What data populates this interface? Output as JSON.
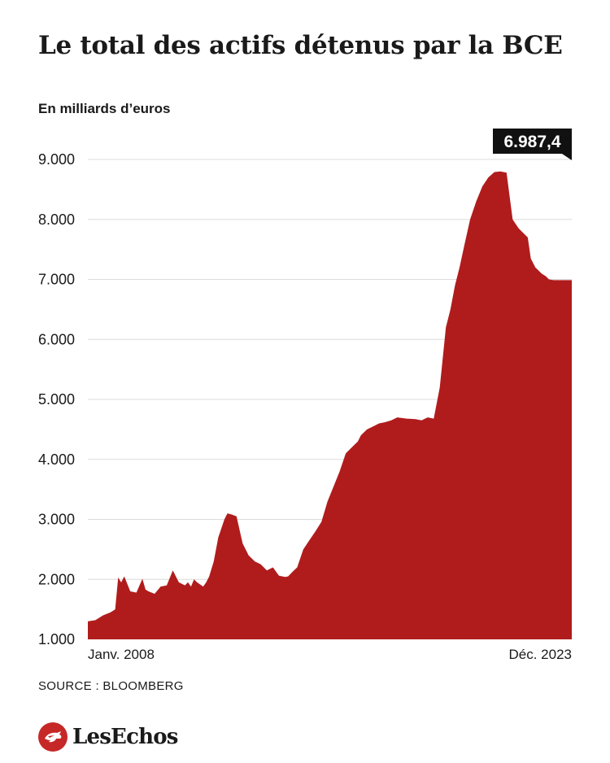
{
  "header": {
    "title": "Le total des actifs détenus par la BCE",
    "subtitle": "En milliards d’euros"
  },
  "source": "SOURCE : BLOOMBERG",
  "brand": {
    "name": "LesEchos",
    "color": "#c62828"
  },
  "chart_data": {
    "type": "area",
    "title": "Le total des actifs détenus par la BCE",
    "ylabel": "En milliards d’euros",
    "ylim": [
      1000,
      9000
    ],
    "yticks": [
      1000,
      2000,
      3000,
      4000,
      5000,
      6000,
      7000,
      8000,
      9000
    ],
    "ytick_labels": [
      "1.000",
      "2.000",
      "3.000",
      "4.000",
      "5.000",
      "6.000",
      "7.000",
      "8.000",
      "9.000"
    ],
    "x_start_label": "Janv. 2008",
    "x_end_label": "Déc. 2023",
    "grid": true,
    "fill_color": "#b01c1c",
    "annotation": {
      "label": "6.987,4",
      "value": 6987.4
    },
    "series": [
      {
        "x": [
          2008.0,
          2008.25,
          2008.5,
          2008.75,
          2008.9,
          2009.0,
          2009.1,
          2009.2,
          2009.4,
          2009.6,
          2009.8,
          2009.9,
          2010.0,
          2010.2,
          2010.4,
          2010.6,
          2010.8,
          2011.0,
          2011.2,
          2011.3,
          2011.4,
          2011.5,
          2011.6,
          2011.8,
          2011.9,
          2012.0,
          2012.15,
          2012.3,
          2012.5,
          2012.6,
          2012.75,
          2012.9,
          2013.1,
          2013.3,
          2013.5,
          2013.7,
          2013.9,
          2014.1,
          2014.3,
          2014.5,
          2014.6,
          2014.75,
          2014.9,
          2015.1,
          2015.3,
          2015.5,
          2015.7,
          2015.9,
          2016.1,
          2016.3,
          2016.5,
          2016.7,
          2016.9,
          2017.0,
          2017.2,
          2017.4,
          2017.6,
          2017.8,
          2018.0,
          2018.2,
          2018.5,
          2018.8,
          2019.0,
          2019.2,
          2019.4,
          2019.6,
          2019.8,
          2019.95,
          2020.1,
          2020.25,
          2020.4,
          2020.6,
          2020.8,
          2021.0,
          2021.2,
          2021.4,
          2021.6,
          2021.8,
          2022.0,
          2022.2,
          2022.4,
          2022.5,
          2022.6,
          2022.75,
          2022.85,
          2022.95,
          2023.1,
          2023.2,
          2023.35,
          2023.5,
          2023.7,
          2023.85,
          2023.95
        ],
        "values": [
          1300,
          1320,
          1400,
          1450,
          1500,
          2030,
          1950,
          2050,
          1800,
          1780,
          2010,
          1830,
          1800,
          1760,
          1880,
          1900,
          2150,
          1950,
          1900,
          1950,
          1880,
          2000,
          1950,
          1880,
          1950,
          2050,
          2300,
          2700,
          3000,
          3100,
          3080,
          3050,
          2600,
          2400,
          2300,
          2250,
          2150,
          2200,
          2060,
          2040,
          2050,
          2130,
          2200,
          2500,
          2650,
          2800,
          2960,
          3300,
          3550,
          3800,
          4100,
          4200,
          4300,
          4400,
          4500,
          4550,
          4600,
          4620,
          4650,
          4700,
          4680,
          4670,
          4650,
          4700,
          4680,
          5200,
          6200,
          6500,
          6900,
          7200,
          7550,
          8000,
          8300,
          8550,
          8700,
          8790,
          8800,
          8780,
          8000,
          7850,
          7750,
          7700,
          7350,
          7200,
          7150,
          7100,
          7050,
          7000,
          6987.4,
          6987.4,
          6987.4,
          6987.4,
          6987.4
        ]
      }
    ]
  }
}
